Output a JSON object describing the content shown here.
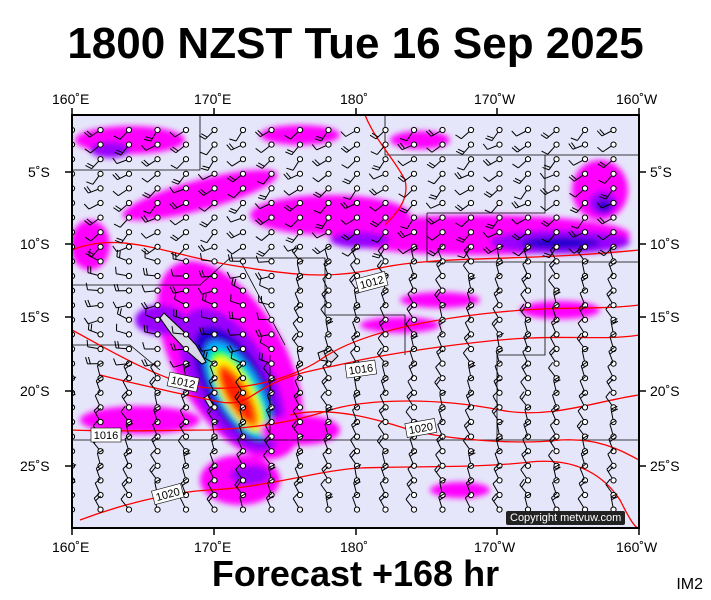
{
  "title": "1800 NZST Tue 16 Sep 2025",
  "footer": "Forecast +168 hr",
  "image_id_label": "IM2",
  "copyright": "Copyright metvuw.com",
  "lon_labels_top": [
    "160˚E",
    "170˚E",
    "180˚",
    "170˚W",
    "160˚W"
  ],
  "lon_labels_bottom": [
    "160˚E",
    "170˚E",
    "180˚",
    "170˚W",
    "160˚W"
  ],
  "lat_labels_left": [
    "5˚S",
    "10˚S",
    "15˚S",
    "20˚S",
    "25˚S"
  ],
  "lat_labels_right": [
    "5˚S",
    "10˚S",
    "15˚S",
    "20˚S",
    "25˚S"
  ],
  "isobar_labels": [
    "1012",
    "1016",
    "1012",
    "1016",
    "1020",
    "1020"
  ],
  "colors": {
    "ocean": "#e6e6fa",
    "isobar": "#ff0000",
    "rain_light": "#ff00ff",
    "rain_med": "#9a00ff",
    "rain_heavy": "#2000d0",
    "rain_green": "#00ff40",
    "rain_yellow": "#ffff00",
    "rain_red": "#ff2000"
  }
}
